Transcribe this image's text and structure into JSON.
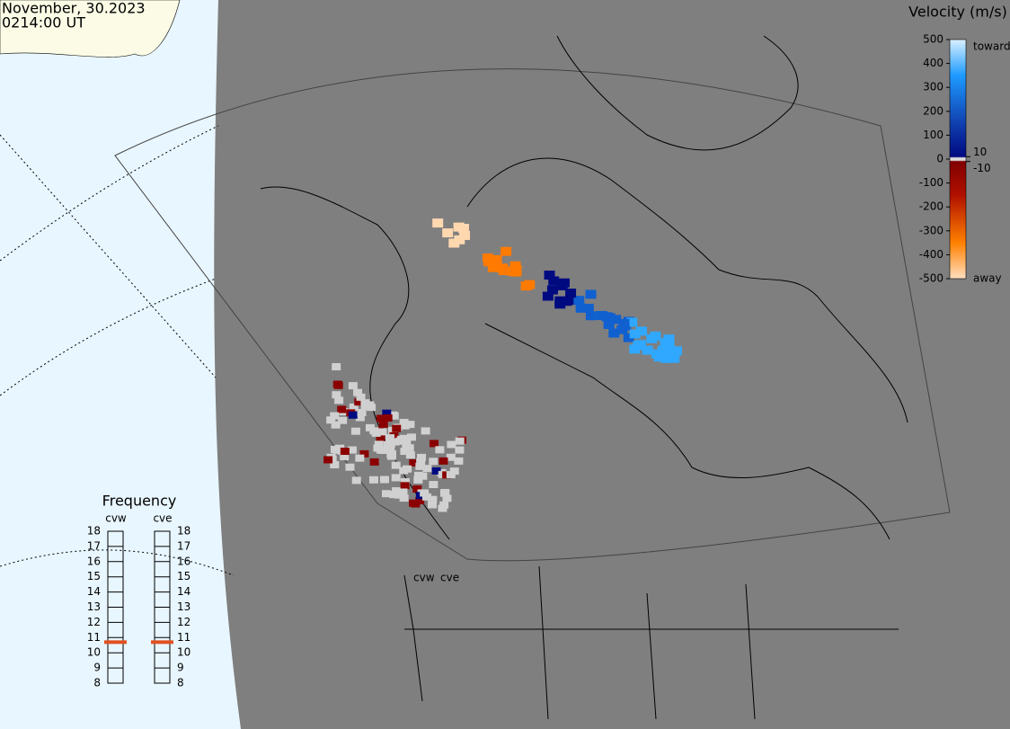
{
  "header": {
    "date": "November, 30.2023",
    "time": "0214:00 UT"
  },
  "velocity_scale": {
    "title": "Velocity (m/s)",
    "lim": [
      -500,
      500
    ],
    "ticks": [
      500,
      400,
      300,
      200,
      100,
      0,
      -100,
      -200,
      -300,
      -400,
      -500
    ],
    "inner_ticks": [
      10,
      -10
    ],
    "toward": "toward",
    "away": "away"
  },
  "frequency": {
    "title": "Frequency",
    "lim": [
      8,
      18
    ],
    "ticks": [
      18,
      17,
      16,
      15,
      14,
      13,
      12,
      11,
      10,
      9,
      8
    ],
    "radars": [
      {
        "name": "cvw",
        "value": 10.7
      },
      {
        "name": "cve",
        "value": 10.7
      }
    ]
  },
  "site_labels": [
    "cvw",
    "cve"
  ]
}
